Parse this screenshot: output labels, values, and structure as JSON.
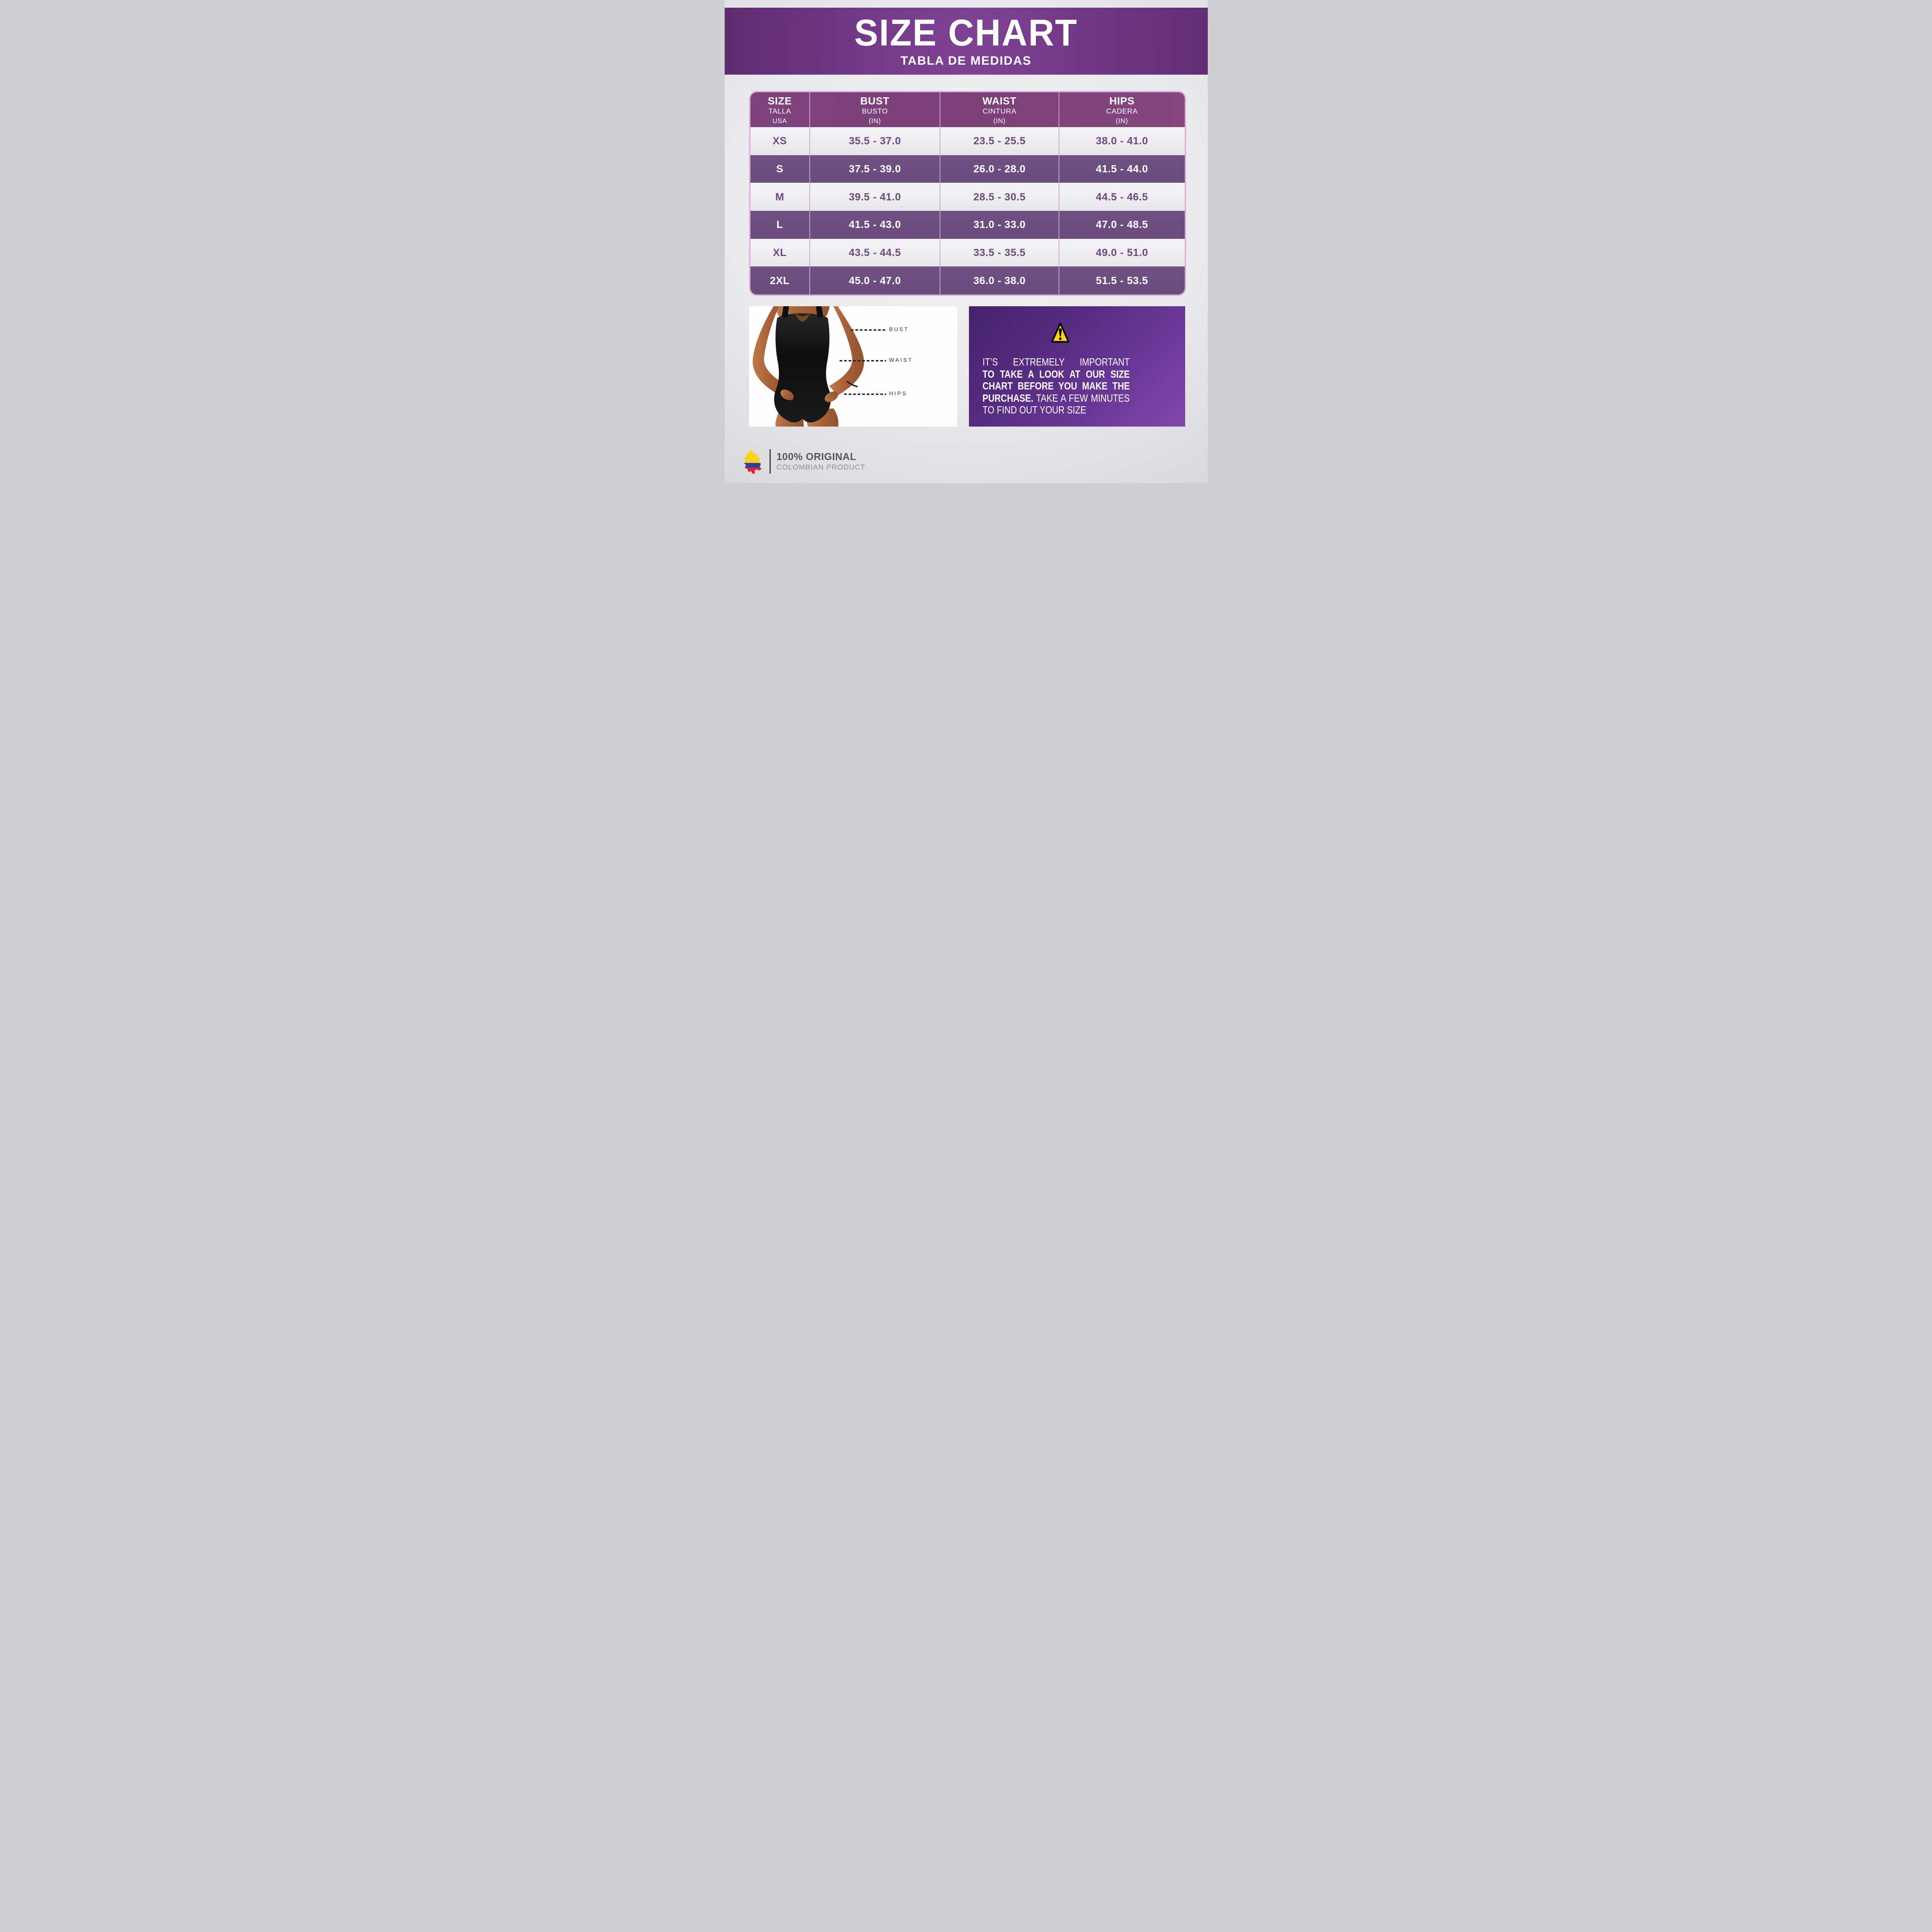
{
  "banner": {
    "title": "SIZE CHART",
    "subtitle": "TABLA DE MEDIDAS"
  },
  "chart_data": {
    "type": "table",
    "title": "SIZE CHART",
    "subtitle": "TABLA DE MEDIDAS",
    "columns": [
      {
        "title": "SIZE",
        "subtitle": "TALLA",
        "unit": "USA"
      },
      {
        "title": "BUST",
        "subtitle": "BUSTO",
        "unit": "(IN)"
      },
      {
        "title": "WAIST",
        "subtitle": "CINTURA",
        "unit": "(IN)"
      },
      {
        "title": "HIPS",
        "subtitle": "CADERA",
        "unit": "(IN)"
      }
    ],
    "rows": [
      {
        "size": "XS",
        "bust": "35.5 - 37.0",
        "waist": "23.5 - 25.5",
        "hips": "38.0 - 41.0"
      },
      {
        "size": "S",
        "bust": "37.5 - 39.0",
        "waist": "26.0 - 28.0",
        "hips": "41.5 - 44.0"
      },
      {
        "size": "M",
        "bust": "39.5 - 41.0",
        "waist": "28.5 - 30.5",
        "hips": "44.5 - 46.5"
      },
      {
        "size": "L",
        "bust": "41.5 - 43.0",
        "waist": "31.0 - 33.0",
        "hips": "47.0 - 48.5"
      },
      {
        "size": "XL",
        "bust": "43.5 - 44.5",
        "waist": "33.5 - 35.5",
        "hips": "49.0 - 51.0"
      },
      {
        "size": "2XL",
        "bust": "45.0 - 47.0",
        "waist": "36.0 - 38.0",
        "hips": "51.5 - 53.5"
      }
    ]
  },
  "figure": {
    "labels": {
      "bust": "BUST",
      "waist": "WAIST",
      "hips": "HIPS"
    }
  },
  "warning": {
    "icon": "warning-triangle-icon",
    "lines": [
      {
        "justify": true,
        "segments": [
          {
            "text": "IT’S EXTREMELY IMPORTANT",
            "bold": false
          }
        ]
      },
      {
        "justify": true,
        "segments": [
          {
            "text": "TO TAKE A LOOK AT OUR SIZE",
            "bold": true
          }
        ]
      },
      {
        "justify": true,
        "segments": [
          {
            "text": "CHART BEFORE YOU MAKE THE",
            "bold": true
          }
        ]
      },
      {
        "justify": true,
        "segments": [
          {
            "text": "PURCHASE.",
            "bold": true
          },
          {
            "text": " TAKE A FEW MINUTES",
            "bold": false
          }
        ]
      },
      {
        "justify": false,
        "segments": [
          {
            "text": "TO FIND OUT YOUR SIZE",
            "bold": false
          }
        ]
      }
    ]
  },
  "brand": {
    "icon": "colombia-map-icon",
    "line1": "100% ORIGINAL",
    "line2": "COLOMBIAN PRODUCT"
  },
  "colors": {
    "banner_purple": "#7e4294",
    "header_purple": "#7c4079",
    "row_purple": "#6a4b7d",
    "row_text_purple": "#6b4a80",
    "table_border_pink": "#dcaed8",
    "warning_gradient_start": "#45226c",
    "warning_gradient_end": "#8347ab",
    "triangle_yellow": "#f8d413",
    "flag_yellow": "#fcd116",
    "flag_blue": "#2c418f",
    "flag_red": "#e0203a"
  }
}
